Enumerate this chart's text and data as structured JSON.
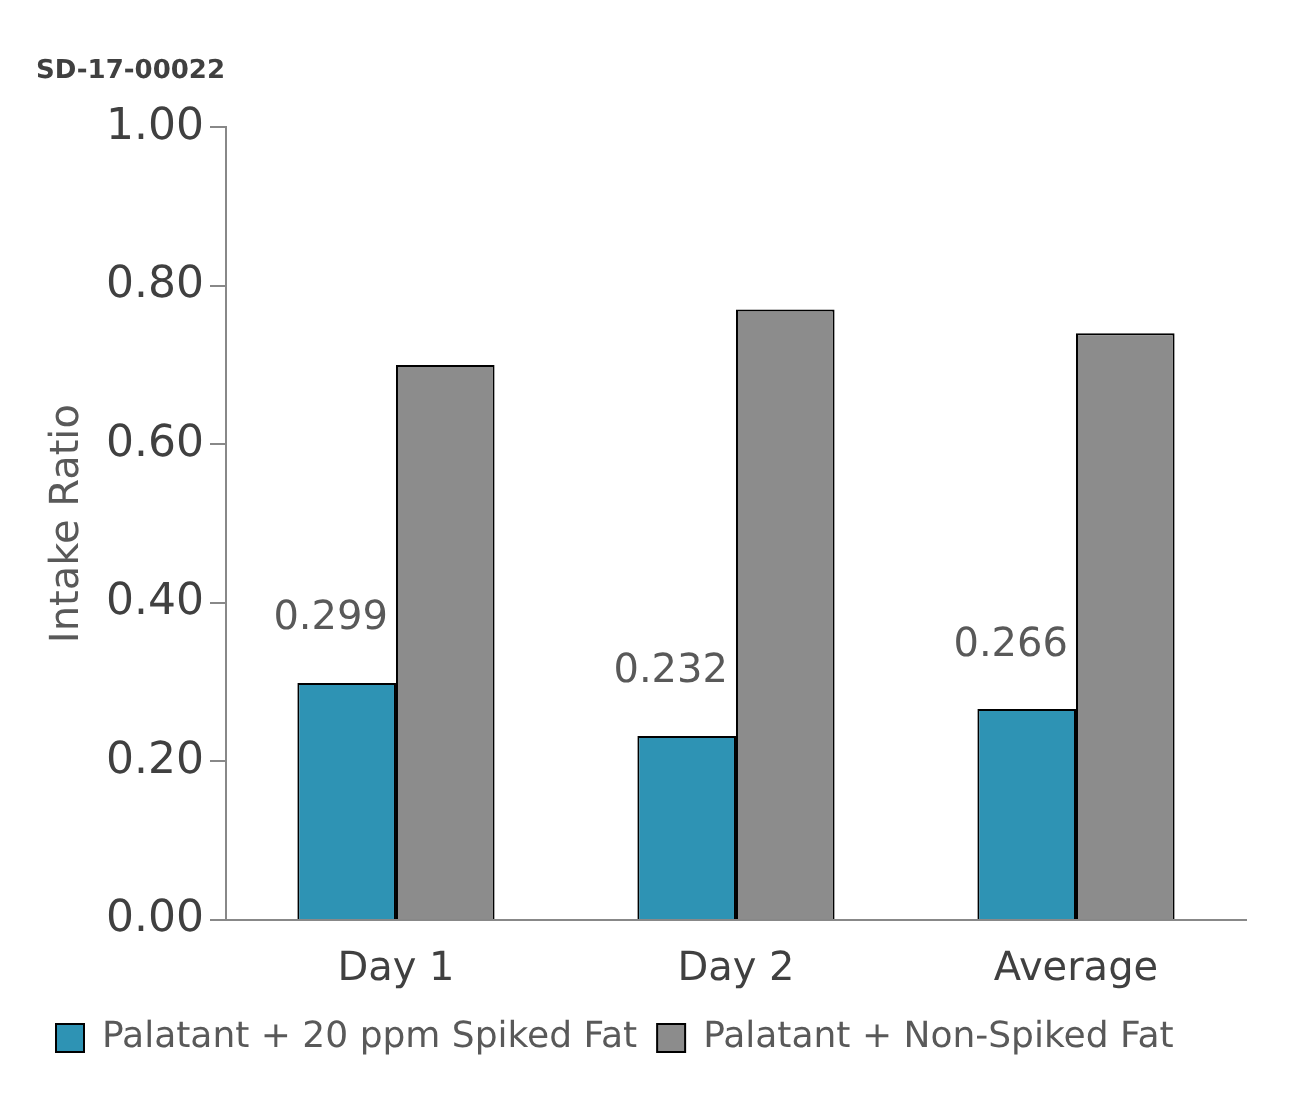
{
  "chart_data": {
    "type": "bar",
    "title": "SD-17-00022",
    "ylabel": "Intake Ratio",
    "categories": [
      "Day 1",
      "Day 2",
      "Average"
    ],
    "series": [
      {
        "name": "Palatant + 20 ppm Spiked Fat",
        "color": "#2e93b4",
        "values": [
          0.299,
          0.232,
          0.266
        ],
        "value_labels": [
          "0.299",
          "0.232",
          "0.266"
        ]
      },
      {
        "name": "Palatant + Non-Spiked Fat",
        "color": "#8c8c8c",
        "values": [
          0.7,
          0.77,
          0.74
        ]
      }
    ],
    "ylim": [
      0,
      1
    ],
    "yticks": [
      {
        "value": 0,
        "label": "0.00"
      },
      {
        "value": 0.2,
        "label": "0.20"
      },
      {
        "value": 0.4,
        "label": "0.40"
      },
      {
        "value": 0.6,
        "label": "0.60"
      },
      {
        "value": 0.8,
        "label": "0.80"
      },
      {
        "value": 1,
        "label": "1.00"
      }
    ],
    "grid": false,
    "legend": "bottom"
  }
}
